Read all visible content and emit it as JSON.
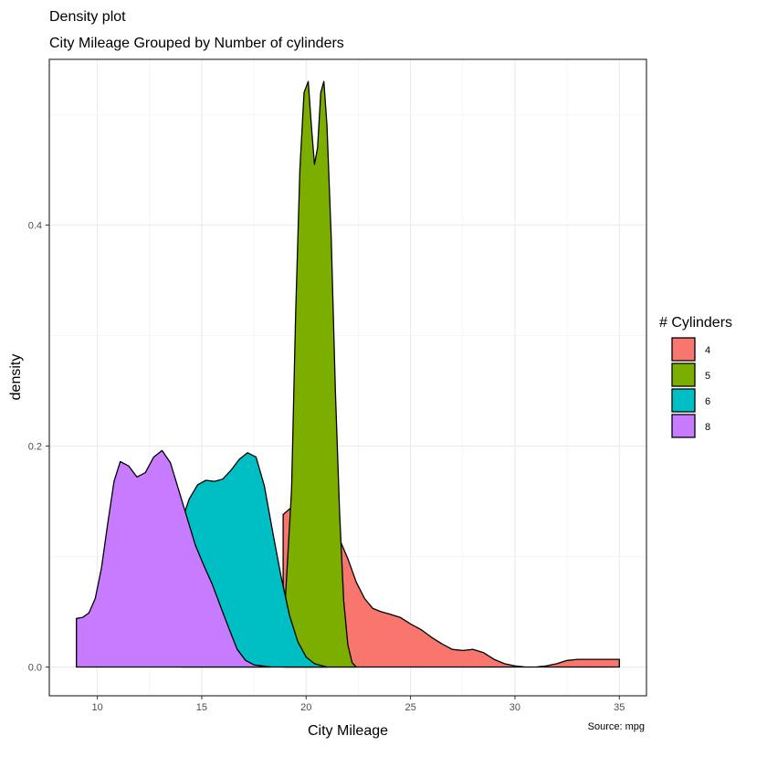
{
  "chart_data": {
    "type": "area",
    "title": "Density plot",
    "subtitle": "City Mileage Grouped by Number of cylinders",
    "xlabel": "City Mileage",
    "ylabel": "density",
    "caption": "Source: mpg",
    "xlim": [
      7.7,
      36.3
    ],
    "ylim": [
      -0.026,
      0.55
    ],
    "x_ticks": [
      10,
      15,
      20,
      25,
      30,
      35
    ],
    "x_tick_labels": [
      "10",
      "15",
      "20",
      "25",
      "30",
      "35"
    ],
    "y_ticks": [
      0.0,
      0.2,
      0.4
    ],
    "y_tick_labels": [
      "0.0",
      "0.2",
      "0.4"
    ],
    "grid": true,
    "legend_title": "# Cylinders",
    "legend_position": "right",
    "series": [
      {
        "name": "4",
        "color": "#F8766D",
        "x": [
          18.9,
          19.2,
          19.6,
          20.0,
          20.5,
          21.0,
          21.5,
          22.0,
          22.4,
          22.8,
          23.2,
          23.6,
          24.0,
          24.5,
          25.0,
          25.5,
          26.0,
          26.5,
          27.0,
          27.5,
          28.0,
          28.5,
          29.0,
          29.5,
          30.0,
          30.5,
          31.0,
          31.5,
          32.0,
          32.5,
          33.0,
          33.5,
          34.0,
          34.5,
          35.0
        ],
        "y": [
          0.138,
          0.143,
          0.147,
          0.148,
          0.143,
          0.135,
          0.12,
          0.098,
          0.077,
          0.062,
          0.053,
          0.05,
          0.048,
          0.045,
          0.039,
          0.034,
          0.027,
          0.021,
          0.016,
          0.015,
          0.016,
          0.013,
          0.007,
          0.003,
          0.001,
          0.0,
          0.0,
          0.001,
          0.003,
          0.006,
          0.007,
          0.007,
          0.007,
          0.007,
          0.007
        ]
      },
      {
        "name": "5",
        "color": "#7CAE00",
        "x": [
          19.0,
          19.3,
          19.5,
          19.7,
          19.9,
          20.1,
          20.25,
          20.4,
          20.55,
          20.7,
          20.85,
          21.0,
          21.2,
          21.4,
          21.6,
          21.8,
          22.0,
          22.2,
          22.4
        ],
        "y": [
          0.06,
          0.16,
          0.32,
          0.45,
          0.52,
          0.53,
          0.49,
          0.455,
          0.47,
          0.52,
          0.53,
          0.49,
          0.39,
          0.25,
          0.14,
          0.06,
          0.02,
          0.004,
          0.0
        ]
      },
      {
        "name": "6",
        "color": "#00BFC4",
        "x": [
          14.0,
          14.4,
          14.8,
          15.2,
          15.6,
          16.0,
          16.4,
          16.8,
          17.2,
          17.6,
          18.0,
          18.4,
          18.8,
          19.2,
          19.6,
          20.0,
          20.4,
          20.8,
          21.0
        ],
        "y": [
          0.13,
          0.152,
          0.165,
          0.169,
          0.168,
          0.17,
          0.178,
          0.188,
          0.194,
          0.19,
          0.164,
          0.122,
          0.082,
          0.047,
          0.023,
          0.009,
          0.003,
          0.001,
          0.0
        ]
      },
      {
        "name": "8",
        "color": "#C77CFF",
        "x": [
          9.0,
          9.3,
          9.6,
          9.9,
          10.2,
          10.5,
          10.8,
          11.1,
          11.5,
          11.9,
          12.3,
          12.7,
          13.1,
          13.5,
          13.9,
          14.3,
          14.7,
          15.1,
          15.5,
          15.9,
          16.3,
          16.7,
          17.1,
          17.5,
          17.9,
          18.3
        ],
        "y": [
          0.044,
          0.045,
          0.049,
          0.062,
          0.09,
          0.13,
          0.168,
          0.186,
          0.182,
          0.172,
          0.176,
          0.19,
          0.196,
          0.185,
          0.16,
          0.135,
          0.11,
          0.092,
          0.075,
          0.055,
          0.035,
          0.016,
          0.006,
          0.002,
          0.001,
          0.0
        ]
      }
    ]
  }
}
